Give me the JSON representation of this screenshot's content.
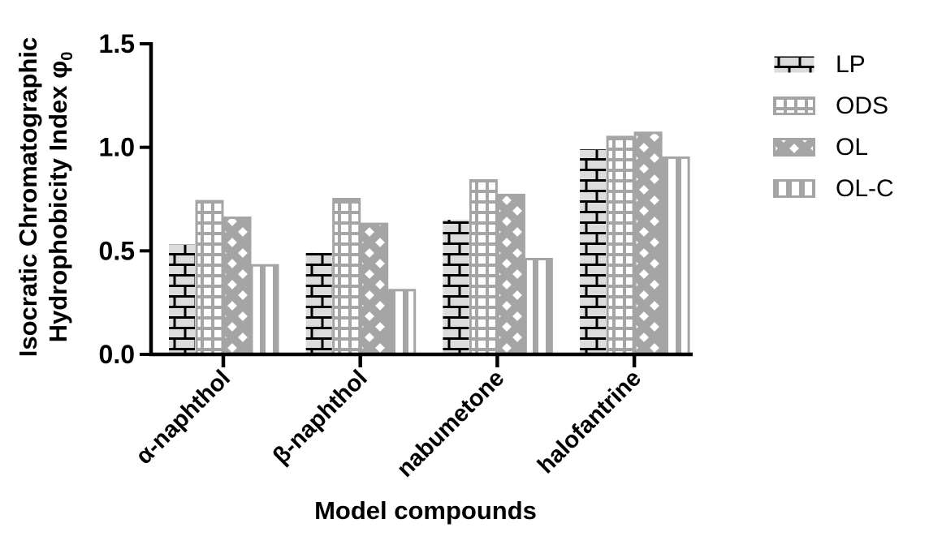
{
  "chart_data": {
    "type": "bar",
    "xlabel": "Model compounds",
    "ylabel_line1": "Isocratic Chromatographic",
    "ylabel_line2": "Hydrophobicity Index φ",
    "ylabel_subscript": "0",
    "categories": [
      "α-naphthol",
      "β-naphthol",
      "nabumetone",
      "halofantrine"
    ],
    "series": [
      {
        "name": "LP",
        "pattern": "brick-black-on-lightgray",
        "values": [
          0.53,
          0.49,
          0.65,
          0.99
        ]
      },
      {
        "name": "ODS",
        "pattern": "grid-gray-on-white",
        "values": [
          0.74,
          0.75,
          0.84,
          1.05
        ]
      },
      {
        "name": "OL",
        "pattern": "diagonal-crosshatch-gray",
        "values": [
          0.66,
          0.63,
          0.77,
          1.07
        ]
      },
      {
        "name": "OL-C",
        "pattern": "vertical-stripes-gray",
        "values": [
          0.43,
          0.31,
          0.46,
          0.95
        ]
      }
    ],
    "ylim": [
      0,
      1.5
    ],
    "yticks": [
      0,
      0.5,
      1.0,
      1.5
    ],
    "ytick_labels": [
      "0.0",
      "0.5",
      "1.0",
      "1.5"
    ],
    "grid": false,
    "legend_position": "right-top",
    "colors": {
      "axis": "#000000",
      "pattern_gray": "#a5a5a5",
      "lp_background": "#dcdcdc",
      "background": "#ffffff"
    }
  }
}
